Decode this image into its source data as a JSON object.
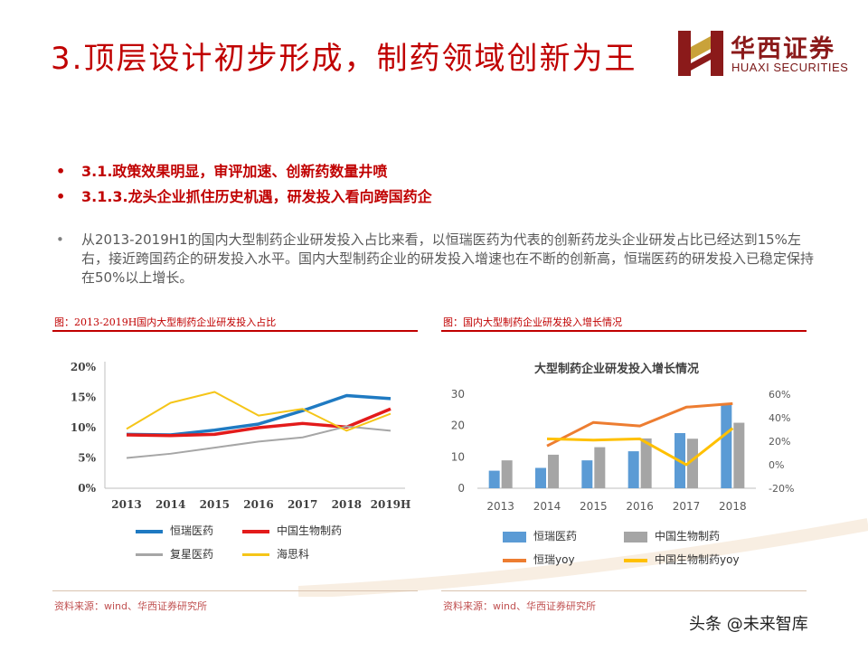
{
  "title": "3.顶层设计初步形成，制药领域创新为王",
  "logo": {
    "cn": "华西证券",
    "en": "HUAXI SECURITIES"
  },
  "bullets": [
    {
      "marker": "•",
      "text": "3.1.政策效果明显，审评加速、创新药数量井喷"
    },
    {
      "marker": "•",
      "text": "3.1.3.龙头企业抓住历史机遇，研发投入看向跨国药企"
    }
  ],
  "paragraph": {
    "marker": "•",
    "text": "从2013-2019H1的国内大型制药企业研发投入占比来看，以恒瑞医药为代表的创新药龙头企业研发占比已经达到15%左右，接近跨国药企的研发投入水平。国内大型制药企业的研发投入增速也在不断的创新高，恒瑞医药的研发投入已稳定保持在50%以上增长。"
  },
  "captions": {
    "left": "图：2013-2019H国内大型制药企业研发投入占比",
    "right": "图：国内大型制药企业研发投入增长情况"
  },
  "sources": {
    "left": "资料来源：wind、华西证券研究所",
    "right": "资料来源：wind、华西证券研究所"
  },
  "watermark": "头条 @未来智库",
  "colors": {
    "accent": "#c00000",
    "hengrui": "#1f7ac2",
    "cbpharma": "#e31b1b",
    "fosun": "#a6a6a6",
    "hansoh": "#f5c518",
    "bar_blue": "#5b9bd5",
    "bar_gray": "#a5a5a5",
    "line_orange": "#ed7d31",
    "line_yellow": "#ffc000"
  },
  "chart_data": [
    {
      "type": "line",
      "title": "",
      "x": [
        "2013",
        "2014",
        "2015",
        "2016",
        "2017",
        "2018",
        "2019H"
      ],
      "yticks": [
        "0%",
        "5%",
        "10%",
        "15%",
        "20%"
      ],
      "ylim": [
        0,
        20
      ],
      "grid": false,
      "legend_position": "bottom",
      "series": [
        {
          "name": "恒瑞医药",
          "values": [
            8.9,
            8.8,
            9.6,
            10.6,
            12.8,
            15.3,
            14.8
          ]
        },
        {
          "name": "中国生物制药",
          "values": [
            8.8,
            8.7,
            8.9,
            10.0,
            10.7,
            10.1,
            13.1
          ]
        },
        {
          "name": "复星医药",
          "values": [
            5.0,
            5.7,
            6.7,
            7.7,
            8.4,
            10.2,
            9.5
          ]
        },
        {
          "name": "海思科",
          "values": [
            9.8,
            14.1,
            15.9,
            12.0,
            13.1,
            9.5,
            12.3
          ]
        }
      ]
    },
    {
      "type": "bar",
      "title": "大型制药企业研发投入增长情况",
      "categories": [
        "2013",
        "2014",
        "2015",
        "2016",
        "2017",
        "2018"
      ],
      "yticks_left": [
        "0",
        "10",
        "20",
        "30"
      ],
      "ylim_left": [
        0,
        30
      ],
      "yticks_right": [
        "-20%",
        "0%",
        "20%",
        "40%",
        "60%"
      ],
      "ylim_right": [
        -20,
        60
      ],
      "grid": false,
      "legend_position": "bottom",
      "series": [
        {
          "name": "恒瑞医药",
          "type": "bar",
          "axis": "left",
          "values": [
            5.6,
            6.5,
            8.9,
            11.8,
            17.6,
            26.7
          ]
        },
        {
          "name": "中国生物制药",
          "type": "bar",
          "axis": "left",
          "values": [
            8.9,
            10.7,
            13.1,
            15.9,
            15.8,
            20.9
          ]
        },
        {
          "name": "恒瑞yoy",
          "type": "line",
          "axis": "right",
          "values": [
            null,
            16,
            36,
            33,
            49,
            52
          ]
        },
        {
          "name": "中国生物制药yoy",
          "type": "line",
          "axis": "right",
          "values": [
            null,
            22,
            21,
            22,
            0,
            31
          ]
        }
      ]
    }
  ]
}
